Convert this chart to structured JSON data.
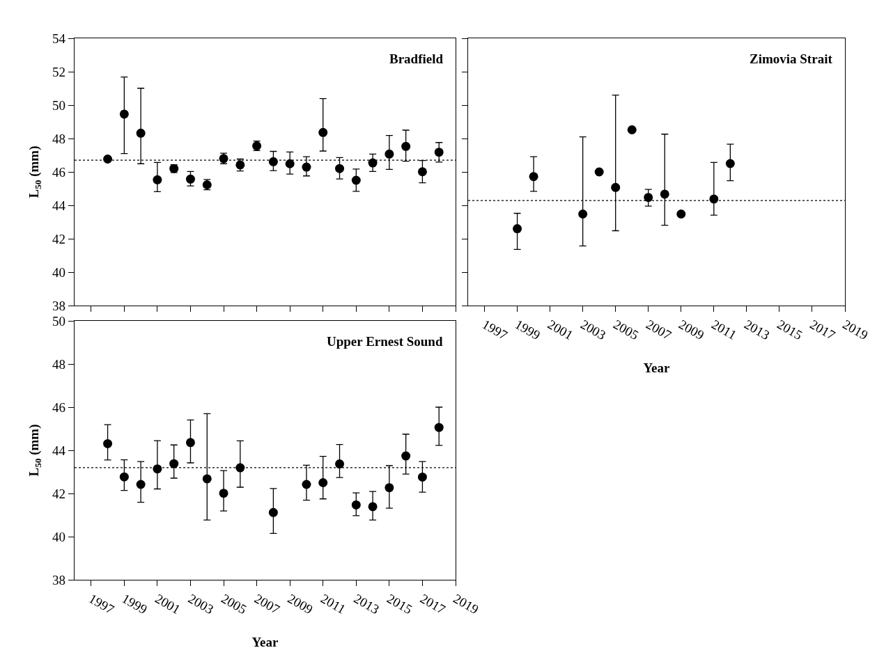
{
  "chart_data": [
    {
      "type": "scatter",
      "title": "Bradfield",
      "ylabel": "L$_{50}$ (mm)",
      "color": "#000000",
      "marker": "circle",
      "tick_labels": "y",
      "x": [
        1998,
        1999,
        2000,
        2001,
        2002,
        2003,
        2004,
        2005,
        2006,
        2007,
        2008,
        2009,
        2010,
        2011,
        2012,
        2013,
        2014,
        2015,
        2016,
        2017,
        2018
      ],
      "values": [
        46.77,
        49.46,
        48.32,
        45.53,
        46.2,
        45.57,
        45.23,
        46.8,
        46.42,
        47.56,
        46.61,
        46.49,
        46.29,
        48.36,
        46.2,
        45.5,
        46.54,
        47.07,
        47.53,
        46.01,
        47.18
      ],
      "errors": [
        null,
        [
          47.1,
          51.68
        ],
        [
          46.49,
          51.01
        ],
        [
          44.82,
          46.57
        ],
        [
          45.96,
          46.43
        ],
        [
          45.16,
          46.03
        ],
        [
          44.93,
          45.55
        ],
        [
          46.49,
          47.12
        ],
        [
          46.06,
          46.77
        ],
        [
          47.28,
          47.85
        ],
        [
          46.08,
          47.23
        ],
        [
          45.87,
          47.19
        ],
        [
          45.76,
          46.91
        ],
        [
          47.25,
          50.39
        ],
        [
          45.58,
          46.86
        ],
        [
          44.84,
          46.17
        ],
        [
          46.03,
          47.07
        ],
        [
          46.15,
          48.18
        ],
        [
          46.64,
          48.5
        ],
        [
          45.35,
          46.68
        ],
        [
          46.59,
          47.76
        ]
      ],
      "ref_lines": [
        {
          "axis": "y",
          "value": 46.7,
          "line_style": "dotted"
        }
      ],
      "xlim": [
        1996,
        2019
      ],
      "xticks": [
        1997,
        1999,
        2001,
        2003,
        2005,
        2007,
        2009,
        2011,
        2013,
        2015,
        2017,
        2019
      ],
      "ylim": [
        38,
        54
      ],
      "yticks": [
        38,
        40,
        42,
        44,
        46,
        48,
        50,
        52,
        54
      ]
    },
    {
      "type": "scatter",
      "title": "Zimovia Strait",
      "xlabel": "Year",
      "color": "#000000",
      "marker": "circle",
      "tick_labels": "x",
      "x": [
        1999,
        2000,
        2003,
        2004,
        2005,
        2006,
        2007,
        2008,
        2009,
        2011,
        2012
      ],
      "values": [
        42.6,
        45.72,
        43.48,
        46.0,
        45.07,
        48.52,
        44.47,
        44.67,
        43.48,
        44.38,
        46.5
      ],
      "errors": [
        [
          41.36,
          43.52
        ],
        [
          44.84,
          46.91
        ],
        [
          41.57,
          48.1
        ],
        null,
        [
          42.48,
          50.6
        ],
        null,
        [
          43.95,
          44.95
        ],
        [
          42.81,
          48.26
        ],
        null,
        [
          43.41,
          46.57
        ],
        [
          45.47,
          47.66
        ]
      ],
      "ref_lines": [
        {
          "axis": "y",
          "value": 44.29,
          "line_style": "dotted"
        }
      ],
      "xlim": [
        1996,
        2019
      ],
      "xticks": [
        1997,
        1999,
        2001,
        2003,
        2005,
        2007,
        2009,
        2011,
        2013,
        2015,
        2017,
        2019
      ],
      "ylim": [
        38,
        54
      ],
      "yticks": [
        38,
        40,
        42,
        44,
        46,
        48,
        50,
        52,
        54
      ]
    },
    {
      "type": "scatter",
      "title": "Upper Ernest Sound",
      "xlabel": "Year",
      "ylabel": "L$_{50}$ (mm)",
      "color": "#000000",
      "marker": "circle",
      "x": [
        1998,
        1999,
        2000,
        2001,
        2002,
        2003,
        2004,
        2005,
        2006,
        2008,
        2010,
        2011,
        2012,
        2013,
        2014,
        2015,
        2016,
        2017,
        2018
      ],
      "values": [
        44.31,
        42.77,
        42.42,
        43.14,
        43.38,
        44.36,
        42.68,
        42.01,
        43.19,
        41.12,
        42.42,
        42.5,
        43.37,
        41.47,
        41.39,
        42.27,
        43.74,
        42.76,
        45.06
      ],
      "errors": [
        [
          43.55,
          45.19
        ],
        [
          42.14,
          43.56
        ],
        [
          41.59,
          43.48
        ],
        [
          42.21,
          44.45
        ],
        [
          42.71,
          44.25
        ],
        [
          43.42,
          45.41
        ],
        [
          40.77,
          45.7
        ],
        [
          41.19,
          43.06
        ],
        [
          42.29,
          44.44
        ],
        [
          40.15,
          42.23
        ],
        [
          41.69,
          43.31
        ],
        [
          41.75,
          43.72
        ],
        [
          42.74,
          44.27
        ],
        [
          40.97,
          42.03
        ],
        [
          40.77,
          42.09
        ],
        [
          41.32,
          43.29
        ],
        [
          42.9,
          44.75
        ],
        [
          42.06,
          43.48
        ],
        [
          44.23,
          46.0
        ]
      ],
      "ref_lines": [
        {
          "axis": "y",
          "value": 43.2,
          "line_style": "dotted"
        }
      ],
      "xlim": [
        1996,
        2019
      ],
      "xticks": [
        1997,
        1999,
        2001,
        2003,
        2005,
        2007,
        2009,
        2011,
        2013,
        2015,
        2017,
        2019
      ],
      "ylim": [
        38,
        50
      ],
      "yticks": [
        38,
        40,
        42,
        44,
        46,
        48,
        50
      ]
    }
  ]
}
